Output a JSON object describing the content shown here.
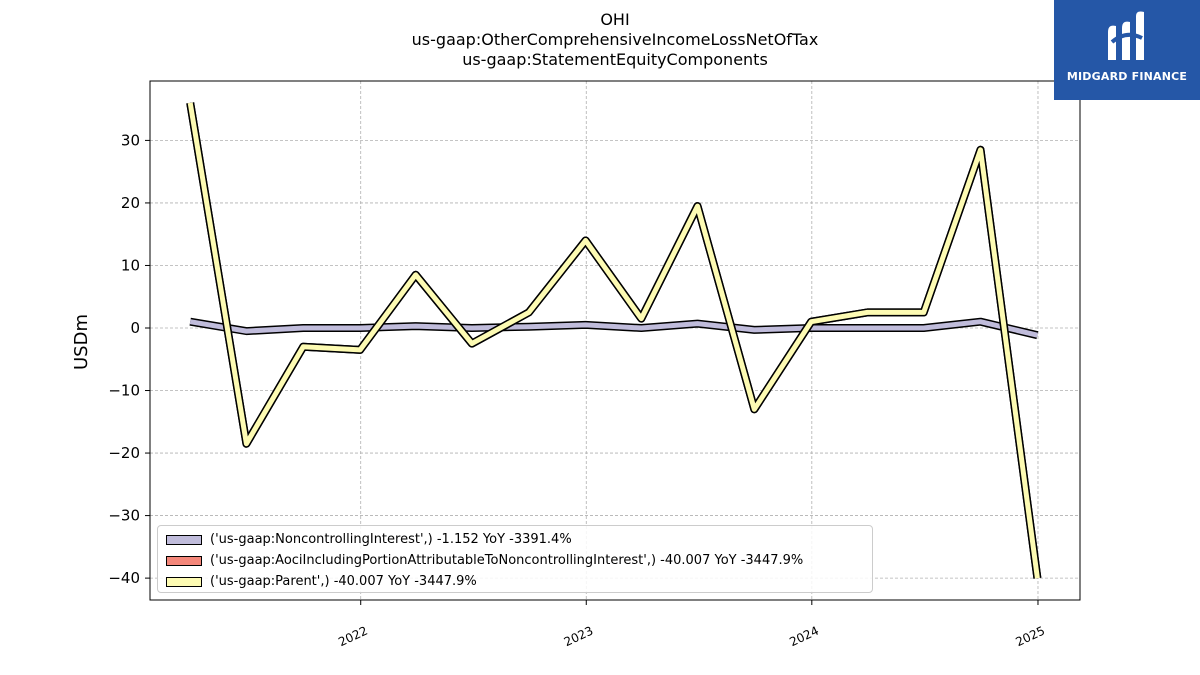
{
  "title_lines": [
    "OHI",
    "us-gaap:OtherComprehensiveIncomeLossNetOfTax",
    "us-gaap:StatementEquityComponents"
  ],
  "brand": {
    "name": "MIDGARD FINANCE",
    "color": "#2557a7"
  },
  "chart_data": {
    "type": "line",
    "ylabel": "USDm",
    "xlabel": "",
    "ylim": [
      -43.5,
      39.5
    ],
    "xlim": [
      "2021-01-25",
      "2025-03-10"
    ],
    "yticks": [
      -40,
      -30,
      -20,
      -10,
      0,
      10,
      20,
      30
    ],
    "ytick_labels": [
      "−40",
      "−30",
      "−20",
      "−10",
      "0",
      "10",
      "20",
      "30"
    ],
    "xticks": [
      "2022-01-01",
      "2023-01-01",
      "2024-01-01",
      "2025-01-01"
    ],
    "xtick_labels": [
      "2022",
      "2023",
      "2024",
      "2025"
    ],
    "grid": true,
    "legend_position": "lower-left",
    "x": [
      "2021-03-31",
      "2021-06-30",
      "2021-09-30",
      "2021-12-31",
      "2022-03-31",
      "2022-06-30",
      "2022-09-30",
      "2022-12-31",
      "2023-03-31",
      "2023-06-30",
      "2023-09-30",
      "2023-12-31",
      "2024-03-31",
      "2024-06-30",
      "2024-09-30",
      "2024-12-31"
    ],
    "series": [
      {
        "name": "('us-gaap:NoncontrollingInterest',) -1.152 YoY -3391.4%",
        "color": "#c0bcdb",
        "values": [
          1.0,
          -0.5,
          0.0,
          0.0,
          0.3,
          0.0,
          0.2,
          0.5,
          0.0,
          0.7,
          -0.3,
          0.0,
          0.0,
          0.0,
          1.0,
          -1.152
        ]
      },
      {
        "name": "('us-gaap:AociIncludingPortionAttributableToNoncontrollingInterest',) -40.007 YoY -3447.9%",
        "color": "#f4877a",
        "values": [
          36.0,
          -18.5,
          -3.0,
          -3.5,
          8.5,
          -2.5,
          2.5,
          14.0,
          1.5,
          19.5,
          -13.0,
          1.0,
          2.5,
          2.5,
          28.5,
          -40.007
        ]
      },
      {
        "name": "('us-gaap:Parent',) -40.007 YoY -3447.9%",
        "color": "#fdfbb3",
        "values": [
          36.0,
          -18.5,
          -3.0,
          -3.5,
          8.5,
          -2.5,
          2.5,
          14.0,
          1.5,
          19.5,
          -13.0,
          1.0,
          2.5,
          2.5,
          28.5,
          -40.007
        ]
      }
    ]
  }
}
